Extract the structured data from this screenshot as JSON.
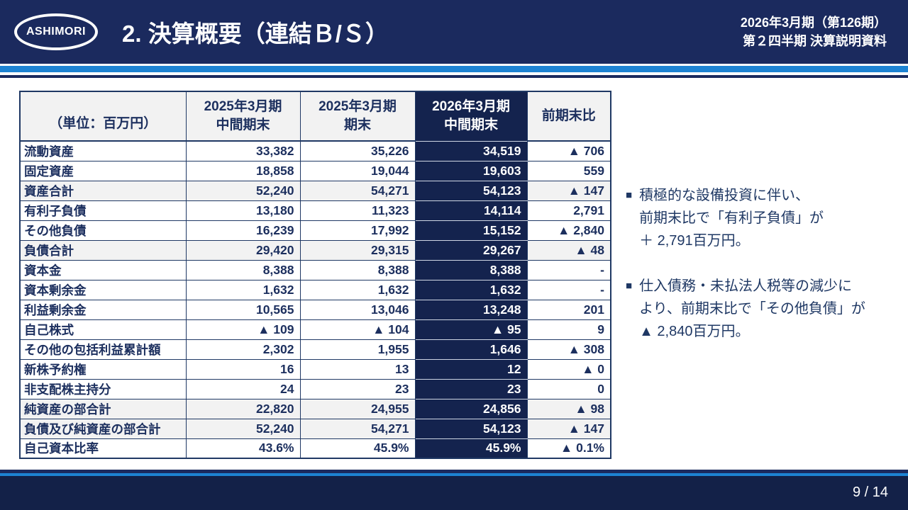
{
  "header": {
    "logo_text": "ASHIMORI",
    "title": "2. 決算概要（連結Ｂ/Ｓ）",
    "meta_line1": "2026年3月期（第126期）",
    "meta_line2": "第２四半期 決算説明資料"
  },
  "table": {
    "unit_label": "（単位：百万円）",
    "columns": [
      {
        "line1": "2025年3月期",
        "line2": "中間期末"
      },
      {
        "line1": "2025年3月期",
        "line2": "期末"
      },
      {
        "line1": "2026年3月期",
        "line2": "中間期末"
      },
      {
        "line1": "前期末比",
        "line2": ""
      }
    ],
    "rows": [
      {
        "label": "流動資産",
        "values": [
          "33,382",
          "35,226",
          "34,519",
          "▲ 706"
        ],
        "shaded": false
      },
      {
        "label": "固定資産",
        "values": [
          "18,858",
          "19,044",
          "19,603",
          "559"
        ],
        "shaded": false
      },
      {
        "label": "資産合計",
        "values": [
          "52,240",
          "54,271",
          "54,123",
          "▲ 147"
        ],
        "shaded": true
      },
      {
        "label": "有利子負債",
        "values": [
          "13,180",
          "11,323",
          "14,114",
          "2,791"
        ],
        "shaded": false
      },
      {
        "label": "その他負債",
        "values": [
          "16,239",
          "17,992",
          "15,152",
          "▲ 2,840"
        ],
        "shaded": false
      },
      {
        "label": "負債合計",
        "values": [
          "29,420",
          "29,315",
          "29,267",
          "▲ 48"
        ],
        "shaded": true
      },
      {
        "label": "資本金",
        "values": [
          "8,388",
          "8,388",
          "8,388",
          "-"
        ],
        "shaded": false
      },
      {
        "label": "資本剰余金",
        "values": [
          "1,632",
          "1,632",
          "1,632",
          "-"
        ],
        "shaded": false
      },
      {
        "label": "利益剰余金",
        "values": [
          "10,565",
          "13,046",
          "13,248",
          "201"
        ],
        "shaded": false
      },
      {
        "label": "自己株式",
        "values": [
          "▲ 109",
          "▲ 104",
          "▲ 95",
          "9"
        ],
        "shaded": false
      },
      {
        "label": "その他の包括利益累計額",
        "values": [
          "2,302",
          "1,955",
          "1,646",
          "▲ 308"
        ],
        "shaded": false
      },
      {
        "label": "新株予約権",
        "values": [
          "16",
          "13",
          "12",
          "▲ 0"
        ],
        "shaded": false
      },
      {
        "label": "非支配株主持分",
        "values": [
          "24",
          "23",
          "23",
          "0"
        ],
        "shaded": false
      },
      {
        "label": "純資産の部合計",
        "values": [
          "22,820",
          "24,955",
          "24,856",
          "▲ 98"
        ],
        "shaded": true
      },
      {
        "label": "負債及び純資産の部合計",
        "values": [
          "52,240",
          "54,271",
          "54,123",
          "▲ 147"
        ],
        "shaded": true
      },
      {
        "label": "自己資本比率",
        "values": [
          "43.6%",
          "45.9%",
          "45.9%",
          "▲ 0.1%"
        ],
        "shaded": false
      }
    ]
  },
  "notes": [
    {
      "bullet": "■",
      "lines": [
        "積極的な設備投資に伴い、",
        "前期末比で「有利子負債」が",
        "＋ 2,791百万円。"
      ]
    },
    {
      "bullet": "■",
      "lines": [
        "仕入債務・未払法人税等の減少に",
        "より、前期末比で「その他負債」が",
        "▲ 2,840百万円。"
      ]
    }
  ],
  "footer": {
    "page": "9 / 14"
  },
  "colors": {
    "banner_navy": "#1b2a5e",
    "accent_blue": "#1d83d3",
    "highlight_navy": "#14234e",
    "text_navy": "#1f3864",
    "shaded_row": "#f2f2f2"
  }
}
